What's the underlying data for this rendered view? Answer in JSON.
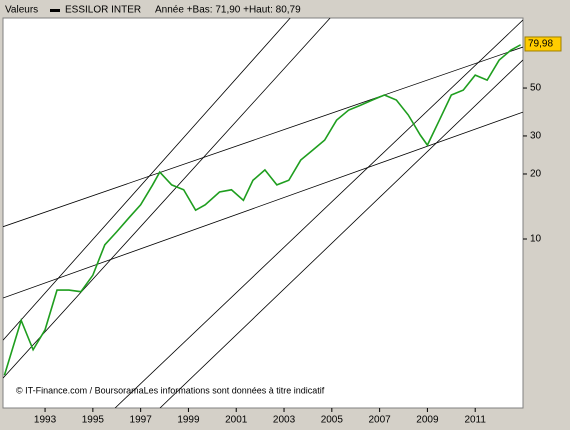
{
  "chart_data": {
    "type": "line",
    "header": "Valeurs",
    "range_text": "Année +Bas: 71,90 +Haut: 80,79",
    "source": "© IT-Finance.com / BoursoramaLes informations sont données à titre indicatif",
    "log_scale": true,
    "x": [
      1991.3,
      1992.0,
      1992.5,
      1993.0,
      1993.5,
      1994.0,
      1994.5,
      1995.0,
      1995.5,
      1996.0,
      1996.5,
      1997.0,
      1997.5,
      1997.8,
      1998.3,
      1998.8,
      1999.3,
      1999.7,
      2000.3,
      2000.8,
      2001.3,
      2001.7,
      2002.2,
      2002.7,
      2003.2,
      2003.7,
      2004.2,
      2004.7,
      2005.2,
      2005.7,
      2006.2,
      2006.7,
      2007.2,
      2007.7,
      2008.2,
      2008.7,
      2009.0,
      2009.5,
      2010.0,
      2010.5,
      2011.0,
      2011.5,
      2012.0,
      2012.5,
      2012.9
    ],
    "series": [
      {
        "name": "ESSILOR INTER",
        "color": "#1f9e1f",
        "values": [
          2.34,
          4.2,
          3.07,
          3.8,
          5.8,
          5.8,
          5.7,
          6.8,
          9.4,
          10.8,
          12.5,
          14.4,
          17.8,
          20.4,
          17.8,
          16.9,
          13.6,
          14.4,
          16.5,
          16.9,
          15.1,
          18.7,
          20.9,
          17.8,
          18.7,
          23.2,
          25.8,
          28.7,
          35.5,
          39.5,
          41.6,
          44,
          46.4,
          44,
          37.5,
          30.3,
          27.2,
          35.5,
          46.4,
          48.9,
          57.4,
          54.4,
          67.3,
          75,
          79.3
        ]
      }
    ],
    "last_value": {
      "value": 79.98,
      "label": "79,98"
    },
    "trend_lines": [
      {
        "x": [
          1991.24,
          2013.0
        ],
        "y": [
          11.4,
          77.4
        ]
      },
      {
        "x": [
          1991.24,
          2013.0
        ],
        "y": [
          5.33,
          38.7
        ]
      },
      {
        "x": [
          1991.24,
          2004.93
        ],
        "y": [
          2.27,
          105.5
        ]
      },
      {
        "x": [
          1991.24,
          2003.26
        ],
        "y": [
          3.4,
          105.5
        ]
      },
      {
        "x": [
          1995.93,
          2013.0
        ],
        "y": [
          1.65,
          103.3
        ]
      },
      {
        "x": [
          1997.81,
          2013.0
        ],
        "y": [
          1.65,
          67.5
        ]
      }
    ],
    "xlim": [
      1991.24,
      2013.0
    ],
    "ylim": [
      1.65,
      105.5
    ],
    "xticks": [
      1993,
      1995,
      1997,
      1999,
      2001,
      2003,
      2005,
      2007,
      2009,
      2011
    ],
    "yticks": [
      10,
      20,
      30,
      50
    ]
  }
}
